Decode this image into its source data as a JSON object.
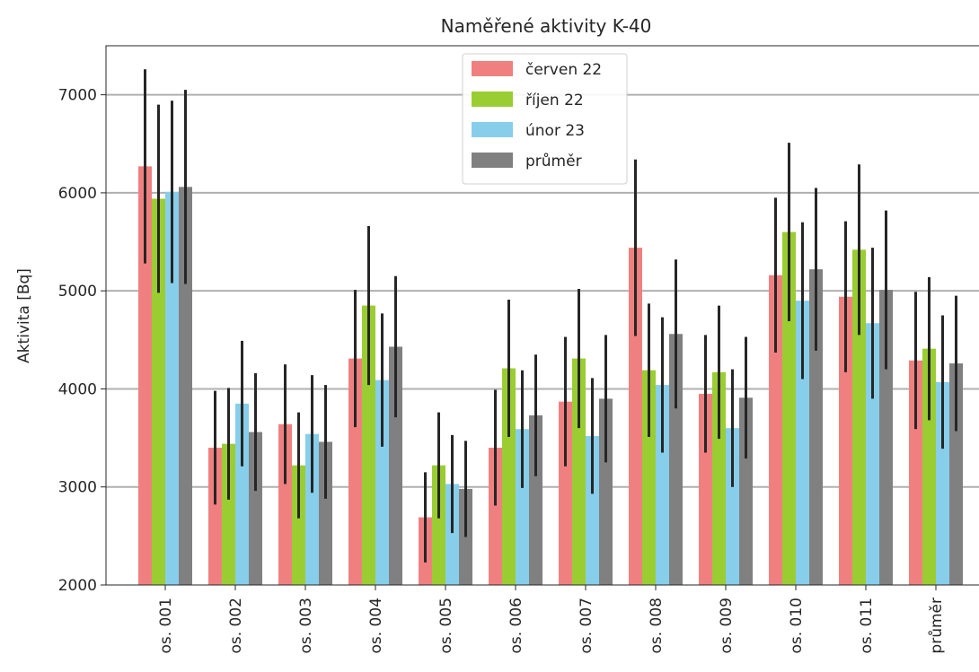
{
  "chart_data": {
    "type": "bar",
    "title": "Naměřené aktivity K-40",
    "xlabel": "",
    "ylabel": "Aktivita [Bq]",
    "ylim": [
      2000,
      7500
    ],
    "yticks": [
      2000,
      3000,
      4000,
      5000,
      6000,
      7000
    ],
    "grid": "horizontal",
    "legend_position": "top-center",
    "categories": [
      "os. 001",
      "os. 002",
      "os. 003",
      "os. 004",
      "os. 005",
      "os. 006",
      "os. 007",
      "os. 008",
      "os. 009",
      "os. 010",
      "os. 011",
      "průměr"
    ],
    "series": [
      {
        "name": "červen 22",
        "color": "#f08080",
        "values": [
          6270,
          3400,
          3640,
          4310,
          2690,
          3400,
          3870,
          5440,
          3950,
          5160,
          4940,
          4290
        ],
        "errors": [
          990,
          580,
          610,
          700,
          460,
          590,
          660,
          900,
          600,
          790,
          770,
          700
        ]
      },
      {
        "name": "říjen 22",
        "color": "#9acd32",
        "values": [
          5940,
          3440,
          3220,
          4850,
          3220,
          4210,
          4310,
          4190,
          4170,
          5600,
          5420,
          4410
        ],
        "errors": [
          960,
          570,
          540,
          810,
          540,
          700,
          710,
          680,
          680,
          910,
          870,
          730
        ]
      },
      {
        "name": "únor 23",
        "color": "#87ceeb",
        "values": [
          6010,
          3850,
          3540,
          4090,
          3030,
          3590,
          3520,
          4040,
          3600,
          4900,
          4670,
          4070
        ],
        "errors": [
          930,
          640,
          600,
          680,
          500,
          600,
          590,
          690,
          600,
          800,
          770,
          680
        ]
      },
      {
        "name": "průměr",
        "color": "#808080",
        "values": [
          6060,
          3560,
          3460,
          4430,
          2980,
          3730,
          3900,
          4560,
          3910,
          5220,
          5010,
          4260
        ],
        "errors": [
          990,
          600,
          580,
          720,
          490,
          620,
          650,
          760,
          620,
          830,
          810,
          690
        ]
      }
    ]
  }
}
